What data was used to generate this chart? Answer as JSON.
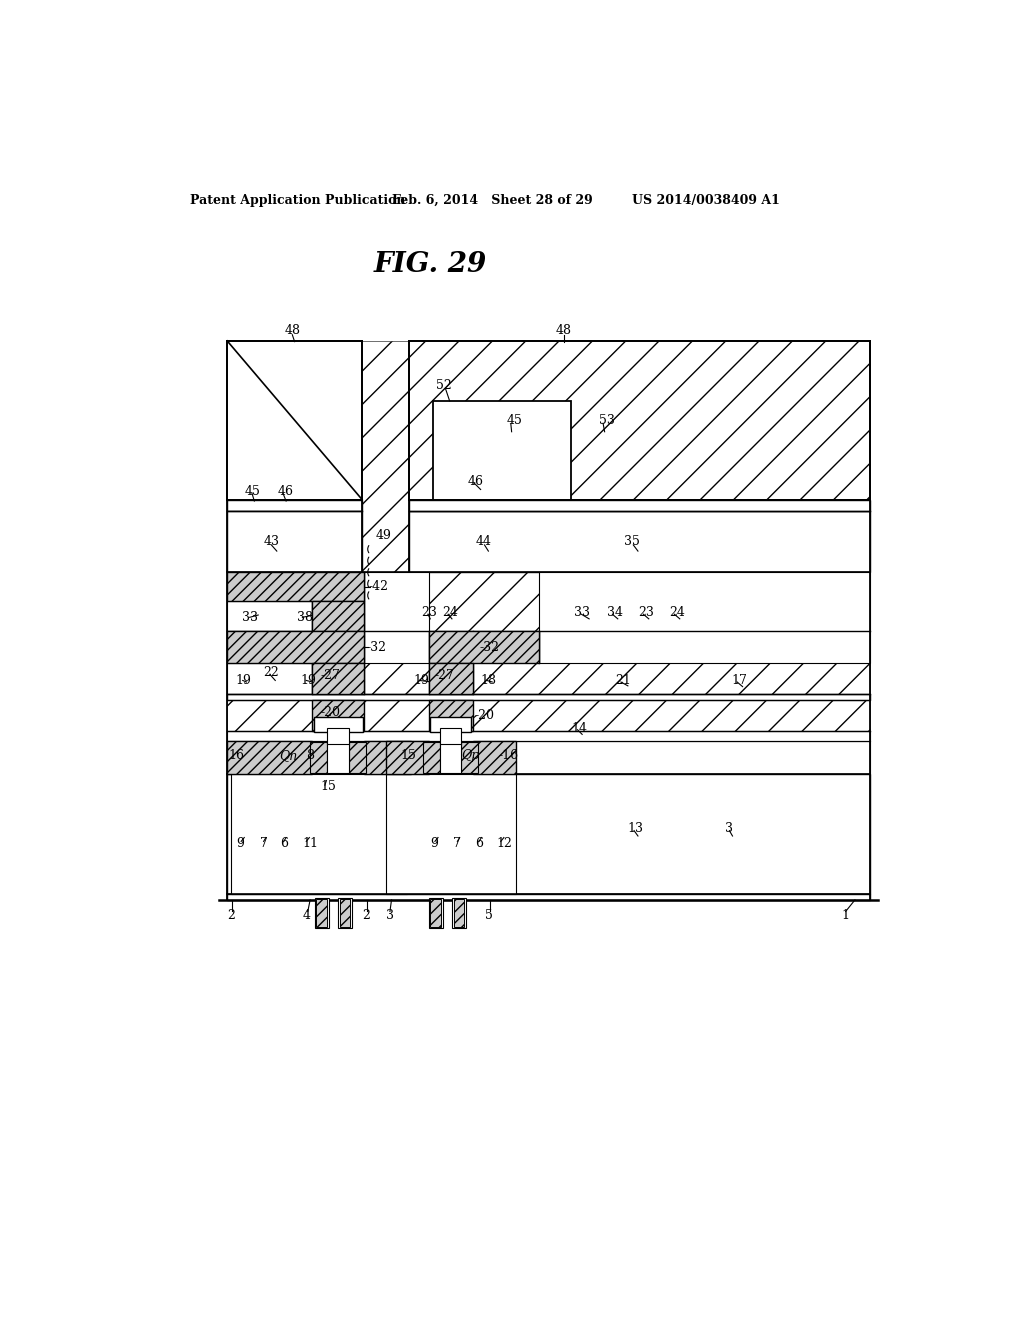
{
  "bg_color": "#ffffff",
  "title": "FIG. 29",
  "header_left": "Patent Application Publication",
  "header_mid": "Feb. 6, 2014   Sheet 28 of 29",
  "header_right": "US 2014/0038409 A1",
  "fig_width": 10.24,
  "fig_height": 13.2,
  "dpi": 100
}
